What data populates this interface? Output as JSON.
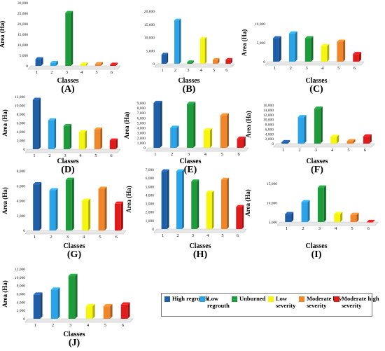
{
  "colors": [
    "#1f5fa8",
    "#2aa3e8",
    "#1e9c3c",
    "#f5f50e",
    "#f0852a",
    "#e01b1b"
  ],
  "legend": [
    {
      "label": "High regrouth",
      "color": "#1f5fa8"
    },
    {
      "label": "Low regrouth",
      "color": "#2aa3e8"
    },
    {
      "label": "Unburned",
      "color": "#1e9c3c"
    },
    {
      "label": "Low severity",
      "color": "#f5f50e"
    },
    {
      "label": "Moderate low severity",
      "color": "#f0852a"
    },
    {
      "label": "Moderate high severity",
      "color": "#e01b1b"
    }
  ],
  "chart_data": [
    {
      "panel": "(A)",
      "type": "bar",
      "categories": [
        "1",
        "2",
        "3",
        "4",
        "5",
        "6"
      ],
      "values": [
        3200,
        1400,
        25200,
        700,
        900,
        600
      ],
      "ylabel": "Area (Ha)",
      "xlabel": "Classes",
      "yticks": [
        "0",
        "5,000",
        "10,000",
        "15,000",
        "20,000",
        "25,000",
        "30,000"
      ],
      "ylim": [
        0,
        30000
      ]
    },
    {
      "panel": "(B)",
      "type": "bar",
      "categories": [
        "1",
        "2",
        "3",
        "4",
        "5",
        "6"
      ],
      "values": [
        3500,
        16500,
        600,
        9500,
        1500,
        1500
      ],
      "ylabel": "",
      "xlabel": "Classes",
      "yticks": [
        "0",
        "5,000",
        "10,000",
        "15,000",
        "20,000"
      ],
      "ylim": [
        0,
        20000
      ]
    },
    {
      "panel": "(C)",
      "type": "bar",
      "categories": [
        "1",
        "2",
        "3",
        "4",
        "5",
        "6"
      ],
      "values": [
        6800,
        8200,
        6800,
        4500,
        5800,
        2200
      ],
      "ylabel": "Area (Ha)",
      "xlabel": "Classes",
      "yticks": [
        "0",
        "5,000",
        "10,000"
      ],
      "ylim": [
        0,
        11000
      ]
    },
    {
      "panel": "(D)",
      "type": "bar",
      "categories": [
        "1",
        "2",
        "3",
        "4",
        "5",
        "6"
      ],
      "values": [
        11300,
        6600,
        5300,
        3900,
        4500,
        2000
      ],
      "ylabel": "Area (Ha)",
      "xlabel": "Classes",
      "yticks": [
        "0",
        "2,000",
        "4,000",
        "6,000",
        "8,000",
        "10,000",
        "12,000"
      ],
      "ylim": [
        0,
        12000
      ]
    },
    {
      "panel": "(E)",
      "type": "bar",
      "categories": [
        "1",
        "2",
        "3",
        "4",
        "5",
        "6"
      ],
      "values": [
        9000,
        4000,
        8800,
        3500,
        6500,
        1800
      ],
      "ylabel": "Area (Ha)",
      "xlabel": "Classes",
      "yticks": [
        "0",
        "1,000",
        "2,000",
        "3,000",
        "4,000",
        "5,000",
        "6,000",
        "7,000",
        "8,000",
        "9,000"
      ],
      "ylim": [
        0,
        9000
      ]
    },
    {
      "panel": "(F)",
      "type": "bar",
      "categories": [
        "1",
        "2",
        "3",
        "4",
        "5",
        "6"
      ],
      "values": [
        600,
        11000,
        14500,
        2800,
        1000,
        3000
      ],
      "ylabel": "Area (Ha)",
      "xlabel": "Classes",
      "yticks": [
        "0",
        "2,000",
        "4,000",
        "6,000",
        "8,000",
        "10,000",
        "12,000",
        "14,000",
        "16,000"
      ],
      "ylim": [
        0,
        16000
      ]
    },
    {
      "panel": "(G)",
      "type": "bar",
      "categories": [
        "1",
        "2",
        "3",
        "4",
        "5",
        "6"
      ],
      "values": [
        6200,
        5400,
        6800,
        4000,
        5600,
        3600
      ],
      "ylabel": "Area (Ha)",
      "xlabel": "Classes",
      "yticks": [
        "0",
        "2,000",
        "4,000",
        "6,000",
        "8,000"
      ],
      "ylim": [
        0,
        8000
      ]
    },
    {
      "panel": "(H)",
      "type": "bar",
      "categories": [
        "1",
        "2",
        "3",
        "4",
        "5",
        "6"
      ],
      "values": [
        6800,
        6800,
        5600,
        4300,
        5800,
        2600
      ],
      "ylabel": "Area (Ha)",
      "xlabel": "Classes",
      "yticks": [
        "0",
        "1,000",
        "2,000",
        "3,000",
        "4,000",
        "5,000",
        "6,000",
        "7,000"
      ],
      "ylim": [
        0,
        7000
      ]
    },
    {
      "panel": "(I)",
      "type": "bar",
      "categories": [
        "1",
        "2",
        "3",
        "4",
        "5",
        "6"
      ],
      "values": [
        5500,
        10000,
        15500,
        5500,
        5200,
        2200
      ],
      "ylabel": "Area (Ha)",
      "xlabel": "Classes",
      "yticks": [
        "5,000",
        "10,000",
        "15,000"
      ],
      "ylim": [
        2500,
        17000
      ]
    },
    {
      "panel": "(J)",
      "type": "bar",
      "categories": [
        "1",
        "2",
        "3",
        "4",
        "5",
        "6"
      ],
      "values": [
        5800,
        7000,
        10300,
        3000,
        3000,
        3400
      ],
      "ylabel": "Area (Ha)",
      "xlabel": "Classes",
      "yticks": [
        "0",
        "2,000",
        "4,000",
        "6,000",
        "8,000",
        "10,000",
        "12,000"
      ],
      "ylim": [
        0,
        12000
      ]
    }
  ]
}
